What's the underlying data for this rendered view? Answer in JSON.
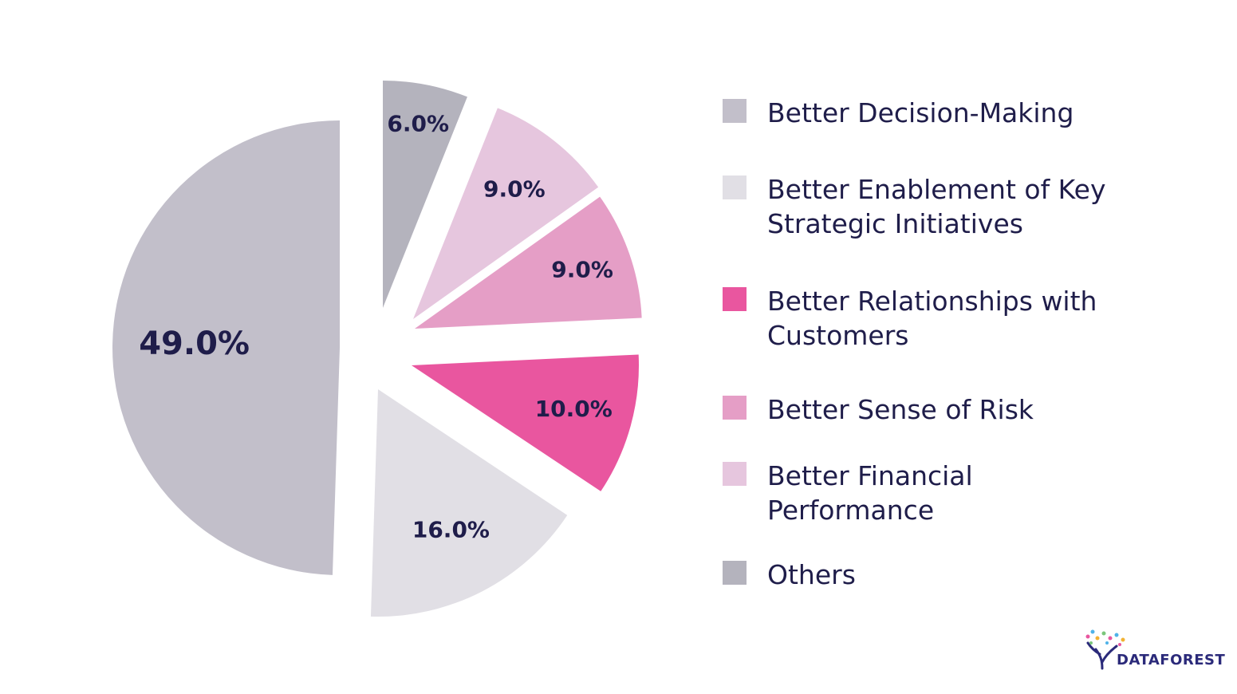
{
  "chart_data": {
    "type": "pie",
    "title": "",
    "slices": [
      {
        "name": "Better Decision-Making",
        "value": 49.0,
        "label": "49.0%",
        "color": "#c2bfca"
      },
      {
        "name": "Others",
        "value": 6.0,
        "label": "6.0%",
        "color": "#b4b3bd"
      },
      {
        "name": "Better Financial Performance",
        "value": 9.0,
        "label": "9.0%",
        "color": "#e6c6de"
      },
      {
        "name": "Better Sense of Risk",
        "value": 9.0,
        "label": "9.0%",
        "color": "#e59ec6"
      },
      {
        "name": "Better Relationships with Customers",
        "value": 10.0,
        "label": "10.0%",
        "color": "#e9569f"
      },
      {
        "name": "Better Enablement of Key Strategic Initiatives",
        "value": 16.0,
        "label": "16.0%",
        "color": "#e1dfe5"
      }
    ],
    "legend_position": "right"
  },
  "legend": {
    "items": [
      {
        "label": "Better Decision-Making",
        "color": "#c2bfca"
      },
      {
        "label": "Better Enablement of Key\nStrategic Initiatives",
        "color": "#e1dfe5"
      },
      {
        "label": "Better Relationships with\nCustomers",
        "color": "#e9569f"
      },
      {
        "label": "Better Sense of Risk",
        "color": "#e59ec6"
      },
      {
        "label": "Better Financial\nPerformance",
        "color": "#e6c6de"
      },
      {
        "label": "Others",
        "color": "#b4b3bd"
      }
    ]
  },
  "brand": {
    "name": "DATAFOREST",
    "colors": [
      "#2b2a7a",
      "#e9569f",
      "#f2b233",
      "#4fb3e8",
      "#7bc67b"
    ]
  }
}
